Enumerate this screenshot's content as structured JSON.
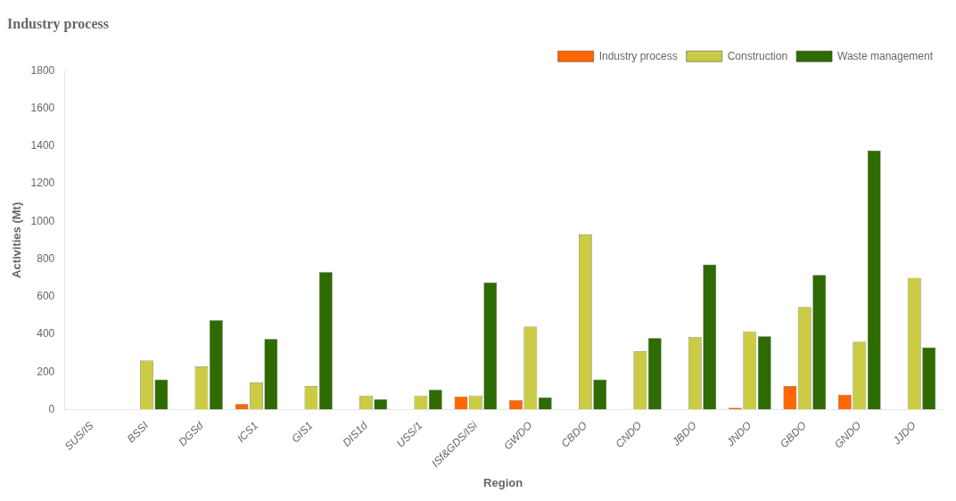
{
  "chart_data": {
    "type": "bar",
    "title": "Industry process",
    "xlabel": "Region",
    "ylabel": "Activities (Mt)",
    "categories": [
      "SUS/IS",
      "BSSI",
      "DGSd",
      "ICS1",
      "GIS1",
      "DIS1d",
      "USS/1",
      "ISf&GDS/ISi",
      "GWDO",
      "CBDO",
      "CNDO",
      "JBDO",
      "JNDO",
      "GBDO",
      "GNDO",
      "JJDO"
    ],
    "series": [
      {
        "name": "Industry process",
        "color": "#FF6600",
        "values": [
          0,
          0,
          0,
          30,
          0,
          0,
          0,
          70,
          50,
          0,
          0,
          0,
          10,
          125,
          80,
          0
        ]
      },
      {
        "name": "Construction",
        "color": "#CCCC44",
        "values": [
          0,
          260,
          230,
          145,
          125,
          75,
          75,
          75,
          440,
          930,
          310,
          385,
          415,
          545,
          360,
          700
        ]
      },
      {
        "name": "Waste management",
        "color": "#2E6B00",
        "values": [
          0,
          160,
          475,
          375,
          730,
          55,
          105,
          675,
          65,
          160,
          380,
          770,
          390,
          715,
          1375,
          330
        ]
      }
    ],
    "ylim": [
      0,
      1800
    ],
    "yticks": [
      0,
      200,
      400,
      600,
      800,
      1000,
      1200,
      1400,
      1600,
      1800
    ],
    "grid": false,
    "legend": "upper right"
  }
}
